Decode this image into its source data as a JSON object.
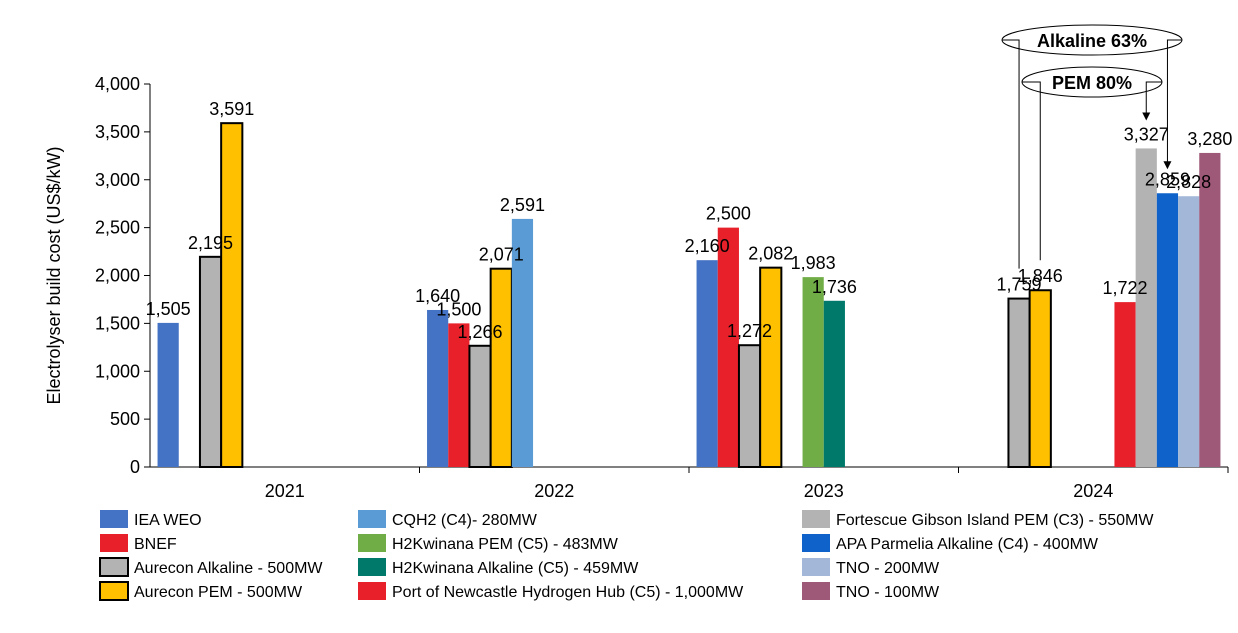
{
  "chart_data": {
    "type": "bar",
    "ylabel": "Electrolyser build cost (US$/kW)",
    "ylim": [
      0,
      4000
    ],
    "yticks": [
      0,
      500,
      1000,
      1500,
      2000,
      2500,
      3000,
      3500,
      4000
    ],
    "ytick_labels": [
      "0",
      "500",
      "1,000",
      "1,500",
      "2,000",
      "2,500",
      "3,000",
      "3,500",
      "4,000"
    ],
    "categories": [
      "2021",
      "2022",
      "2023",
      "2024"
    ],
    "grid": false,
    "legend_position": "bottom",
    "series": [
      {
        "name": "IEA WEO",
        "color": "#4472C4",
        "outline": false,
        "values": [
          1505,
          1640,
          2160,
          null
        ],
        "labels": [
          "1,505",
          "1,640",
          "2,160",
          null
        ]
      },
      {
        "name": "BNEF",
        "color": "#E8202A",
        "outline": false,
        "values": [
          null,
          1500,
          2500,
          null
        ],
        "labels": [
          null,
          "1,500",
          "2,500",
          null
        ]
      },
      {
        "name": "Aurecon Alkaline - 500MW",
        "color": "#B3B3B3",
        "outline": true,
        "values": [
          2195,
          1266,
          1272,
          1759
        ],
        "labels": [
          "2,195",
          "1,266",
          "1,272",
          "1,759"
        ]
      },
      {
        "name": "Aurecon PEM - 500MW",
        "color": "#FFC000",
        "outline": true,
        "values": [
          3591,
          2071,
          2082,
          1846
        ],
        "labels": [
          "3,591",
          "2,071",
          "2,082",
          "1,846"
        ]
      },
      {
        "name": "CQH2 (C4)- 280MW",
        "color": "#5B9BD5",
        "outline": false,
        "values": [
          null,
          2591,
          null,
          null
        ],
        "labels": [
          null,
          "2,591",
          null,
          null
        ]
      },
      {
        "name": "H2Kwinana PEM (C5) - 483MW",
        "color": "#70AD47",
        "outline": false,
        "values": [
          null,
          null,
          1983,
          null
        ],
        "labels": [
          null,
          null,
          "1,983",
          null
        ]
      },
      {
        "name": "H2Kwinana Alkaline (C5) - 459MW",
        "color": "#00796B",
        "outline": false,
        "values": [
          null,
          null,
          1736,
          null
        ],
        "labels": [
          null,
          null,
          "1,736",
          null
        ]
      },
      {
        "name": "Port of Newcastle Hydrogen Hub (C5) - 1,000MW",
        "color": "#E8202A",
        "outline": false,
        "values": [
          null,
          null,
          null,
          1722
        ],
        "labels": [
          null,
          null,
          null,
          "1,722"
        ]
      },
      {
        "name": "Fortescue Gibson Island PEM (C3) - 550MW",
        "color": "#B3B3B3",
        "outline": false,
        "values": [
          null,
          null,
          null,
          3327
        ],
        "labels": [
          null,
          null,
          null,
          "3,327"
        ]
      },
      {
        "name": "APA Parmelia Alkaline (C4) - 400MW",
        "color": "#0F62C9",
        "outline": false,
        "values": [
          null,
          null,
          null,
          2859
        ],
        "labels": [
          null,
          null,
          null,
          "2,859"
        ]
      },
      {
        "name": "TNO - 200MW",
        "color": "#A3B7D9",
        "outline": false,
        "values": [
          null,
          null,
          null,
          2828
        ],
        "labels": [
          null,
          null,
          null,
          "2,828"
        ]
      },
      {
        "name": "TNO - 100MW",
        "color": "#9E5878",
        "outline": false,
        "values": [
          null,
          null,
          null,
          3280
        ],
        "labels": [
          null,
          null,
          null,
          "3,280"
        ]
      }
    ],
    "annotations": [
      {
        "text": "Alkaline 63%"
      },
      {
        "text": "PEM 80%"
      }
    ]
  }
}
